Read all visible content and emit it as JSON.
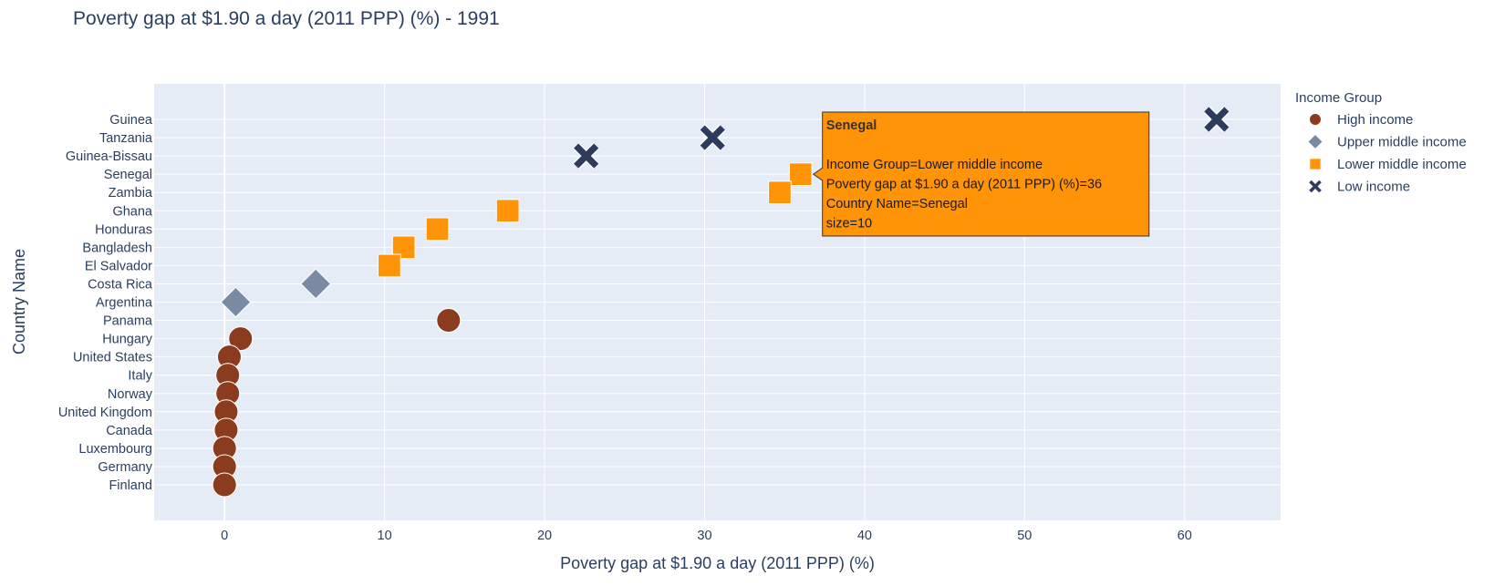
{
  "chart_data": {
    "type": "scatter",
    "title": "Poverty gap at $1.90 a day (2011 PPP) (%) - 1991",
    "xlabel": "Poverty gap at $1.90 a day (2011 PPP) (%)",
    "ylabel": "Country Name",
    "xlim": [
      -4.4,
      66
    ],
    "xticks": [
      0,
      10,
      20,
      30,
      40,
      50,
      60
    ],
    "grid": true,
    "legend_position": "right",
    "legend_title": "Income Group",
    "categories": [
      "Guinea",
      "Tanzania",
      "Guinea-Bissau",
      "Senegal",
      "Zambia",
      "Ghana",
      "Honduras",
      "Bangladesh",
      "El Salvador",
      "Costa Rica",
      "Argentina",
      "Panama",
      "Hungary",
      "United States",
      "Italy",
      "Norway",
      "United Kingdom",
      "Canada",
      "Luxembourg",
      "Germany",
      "Finland"
    ],
    "series": [
      {
        "name": "High income",
        "symbol": "circle",
        "color": "#8c3c1e",
        "points": [
          {
            "country": "Panama",
            "x": 14
          },
          {
            "country": "Hungary",
            "x": 1
          },
          {
            "country": "United States",
            "x": 0.3
          },
          {
            "country": "Italy",
            "x": 0.2
          },
          {
            "country": "Norway",
            "x": 0.2
          },
          {
            "country": "United Kingdom",
            "x": 0.1
          },
          {
            "country": "Canada",
            "x": 0.1
          },
          {
            "country": "Luxembourg",
            "x": 0
          },
          {
            "country": "Germany",
            "x": 0
          },
          {
            "country": "Finland",
            "x": 0
          }
        ]
      },
      {
        "name": "Upper middle income",
        "symbol": "diamond",
        "color": "#7a8aa3",
        "points": [
          {
            "country": "Costa Rica",
            "x": 5.7
          },
          {
            "country": "Argentina",
            "x": 0.7
          }
        ]
      },
      {
        "name": "Lower middle income",
        "symbol": "square",
        "color": "#ff9408",
        "points": [
          {
            "country": "Senegal",
            "x": 36
          },
          {
            "country": "Zambia",
            "x": 34.7
          },
          {
            "country": "Ghana",
            "x": 17.7
          },
          {
            "country": "Honduras",
            "x": 13.3
          },
          {
            "country": "Bangladesh",
            "x": 11.2
          },
          {
            "country": "El Salvador",
            "x": 10.3
          }
        ]
      },
      {
        "name": "Low income",
        "symbol": "x",
        "color": "#2e3b5e",
        "points": [
          {
            "country": "Guinea",
            "x": 62
          },
          {
            "country": "Tanzania",
            "x": 30.5
          },
          {
            "country": "Guinea-Bissau",
            "x": 22.6
          }
        ]
      }
    ]
  },
  "tooltip": {
    "color": "#ff9408",
    "target_country": "Senegal",
    "title": "Senegal",
    "lines": [
      "Income Group=Lower middle income",
      "Poverty gap at $1.90 a day (2011 PPP) (%)=36",
      "Country Name=Senegal",
      "size=10"
    ]
  },
  "colors": {
    "plot_background": "#e5ecf6",
    "grid": "#ffffff",
    "text": "#2a3f5f"
  }
}
